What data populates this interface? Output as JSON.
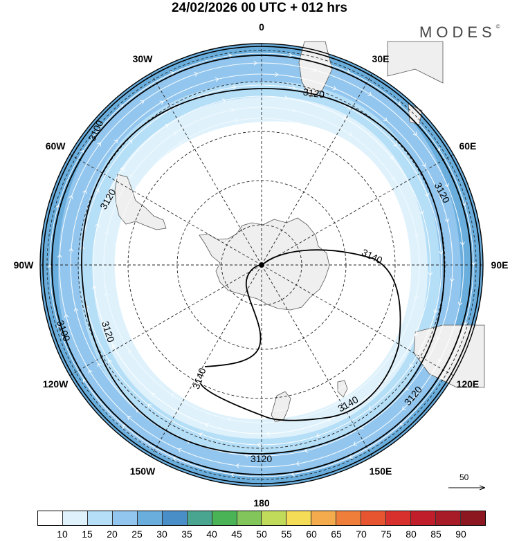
{
  "header": {
    "title": "24/02/2026  00 UTC  + 012 hrs",
    "brand": "MODES",
    "brand_mark": "©"
  },
  "map": {
    "projection": "south polar stereographic",
    "longitude_labels": [
      {
        "lon": 0,
        "text": "0"
      },
      {
        "lon": -30,
        "text": "30W"
      },
      {
        "lon": 30,
        "text": "30E"
      },
      {
        "lon": -60,
        "text": "60W"
      },
      {
        "lon": 60,
        "text": "60E"
      },
      {
        "lon": -90,
        "text": "90W"
      },
      {
        "lon": 90,
        "text": "90E"
      },
      {
        "lon": -120,
        "text": "120W"
      },
      {
        "lon": 120,
        "text": "120E"
      },
      {
        "lon": -150,
        "text": "150W"
      },
      {
        "lon": 150,
        "text": "150E"
      },
      {
        "lon": 180,
        "text": "180"
      }
    ],
    "latitude_circles_deg": [
      -80,
      -70,
      -60,
      -50,
      -40,
      -30
    ],
    "contour_labels": [
      "3100",
      "3120",
      "3140"
    ],
    "wind_reference": {
      "value": "50",
      "arrow": "right-arrow-icon"
    },
    "colors": {
      "land": "#efefef",
      "coast": "#555555",
      "shade_15": "#dff2fc",
      "shade_20": "#b5def7",
      "shade_25": "#92c6ee",
      "shade_30": "#6aaedd"
    }
  },
  "colorbar": {
    "colors": [
      "#ffffff",
      "#dff2fc",
      "#b5def7",
      "#92c6ee",
      "#6aaedd",
      "#4a8ec8",
      "#4aa590",
      "#49b356",
      "#82c55a",
      "#c0da5a",
      "#f5dc56",
      "#f3ab4e",
      "#ee7e3a",
      "#e65530",
      "#d8302c",
      "#c11e2c",
      "#a81c28",
      "#8c1720"
    ],
    "labels": [
      "10",
      "15",
      "20",
      "25",
      "30",
      "35",
      "40",
      "45",
      "50",
      "55",
      "60",
      "65",
      "70",
      "75",
      "80",
      "85",
      "90"
    ]
  }
}
